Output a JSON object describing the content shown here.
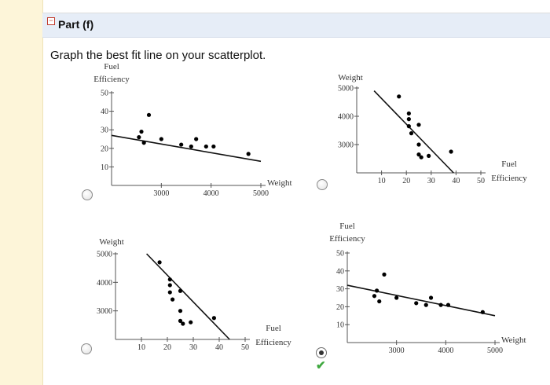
{
  "part": {
    "title": "Part (f)"
  },
  "question": "Graph the best fit line on your scatterplot.",
  "colors": {
    "sidebar": "#fdf5d9",
    "part_bar": "#e6edf7",
    "correct": "#3fa83f",
    "collapse": "#c0392b"
  },
  "options": [
    {
      "id": "a",
      "selected": false,
      "correct": false
    },
    {
      "id": "b",
      "selected": false,
      "correct": false
    },
    {
      "id": "c",
      "selected": false,
      "correct": false
    },
    {
      "id": "d",
      "selected": true,
      "correct": true
    }
  ],
  "chart_data": [
    {
      "type": "scatter",
      "xlabel": "Weight",
      "ylabel": "Fuel Efficiency",
      "xlim": [
        2000,
        5000
      ],
      "ylim": [
        0,
        50
      ],
      "xticks": [
        3000,
        4000,
        5000
      ],
      "yticks": [
        10,
        20,
        30,
        40,
        50
      ],
      "points": [
        [
          2550,
          26
        ],
        [
          2600,
          29
        ],
        [
          2650,
          23
        ],
        [
          2750,
          38
        ],
        [
          3000,
          25
        ],
        [
          3400,
          22
        ],
        [
          3600,
          21
        ],
        [
          3700,
          25
        ],
        [
          3900,
          21
        ],
        [
          4050,
          21
        ],
        [
          4750,
          17
        ]
      ],
      "fit_line": [
        [
          2000,
          27
        ],
        [
          5000,
          13
        ]
      ]
    },
    {
      "type": "scatter",
      "xlabel": "Fuel Efficiency",
      "ylabel": "Weight",
      "xlim": [
        0,
        50
      ],
      "ylim": [
        2000,
        5000
      ],
      "xticks": [
        10,
        20,
        30,
        40,
        50
      ],
      "yticks": [
        3000,
        4000,
        5000
      ],
      "points": [
        [
          17,
          4700
        ],
        [
          21,
          4100
        ],
        [
          21,
          3900
        ],
        [
          21,
          3650
        ],
        [
          22,
          3400
        ],
        [
          25,
          3700
        ],
        [
          25,
          3000
        ],
        [
          25,
          2650
        ],
        [
          26,
          2550
        ],
        [
          29,
          2600
        ],
        [
          38,
          2750
        ]
      ],
      "fit_line": [
        [
          7,
          4900
        ],
        [
          39,
          2000
        ]
      ]
    },
    {
      "type": "scatter",
      "xlabel": "Fuel Efficiency",
      "ylabel": "Weight",
      "xlim": [
        0,
        50
      ],
      "ylim": [
        2000,
        5000
      ],
      "xticks": [
        10,
        20,
        30,
        40,
        50
      ],
      "yticks": [
        3000,
        4000,
        5000
      ],
      "points": [
        [
          17,
          4700
        ],
        [
          21,
          4100
        ],
        [
          21,
          3900
        ],
        [
          21,
          3650
        ],
        [
          22,
          3400
        ],
        [
          25,
          3700
        ],
        [
          25,
          3000
        ],
        [
          25,
          2650
        ],
        [
          26,
          2550
        ],
        [
          29,
          2600
        ],
        [
          38,
          2750
        ]
      ],
      "fit_line": [
        [
          12,
          5000
        ],
        [
          44,
          2000
        ]
      ]
    },
    {
      "type": "scatter",
      "xlabel": "Weight",
      "ylabel": "Fuel Efficiency",
      "xlim": [
        2000,
        5000
      ],
      "ylim": [
        0,
        50
      ],
      "xticks": [
        3000,
        4000,
        5000
      ],
      "yticks": [
        10,
        20,
        30,
        40,
        50
      ],
      "points": [
        [
          2550,
          26
        ],
        [
          2600,
          29
        ],
        [
          2650,
          23
        ],
        [
          2750,
          38
        ],
        [
          3000,
          25
        ],
        [
          3400,
          22
        ],
        [
          3600,
          21
        ],
        [
          3700,
          25
        ],
        [
          3900,
          21
        ],
        [
          4050,
          21
        ],
        [
          4750,
          17
        ]
      ],
      "fit_line": [
        [
          2000,
          32
        ],
        [
          5000,
          15
        ]
      ]
    }
  ]
}
